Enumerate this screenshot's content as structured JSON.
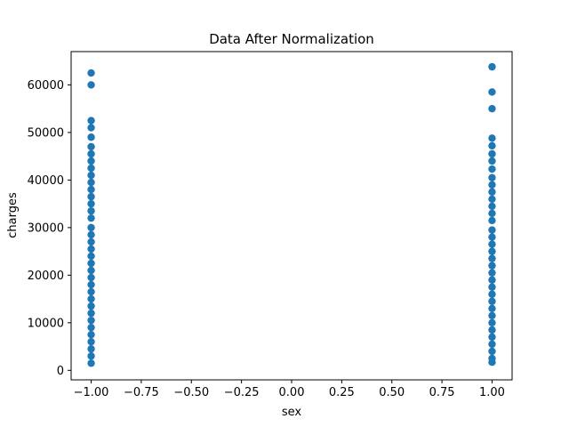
{
  "chart_data": {
    "type": "scatter",
    "title": "Data After Normalization",
    "xlabel": "sex",
    "ylabel": "charges",
    "xlim": [
      -1.1,
      1.1
    ],
    "ylim": [
      -2000,
      67000
    ],
    "x_ticks": [
      -1.0,
      -0.75,
      -0.5,
      -0.25,
      0.0,
      0.25,
      0.5,
      0.75,
      1.0
    ],
    "x_tick_labels": [
      "−1.00",
      "−0.75",
      "−0.50",
      "−0.25",
      "0.00",
      "0.25",
      "0.50",
      "0.75",
      "1.00"
    ],
    "y_ticks": [
      0,
      10000,
      20000,
      30000,
      40000,
      50000,
      60000
    ],
    "y_tick_labels": [
      "0",
      "10000",
      "20000",
      "30000",
      "40000",
      "50000",
      "60000"
    ],
    "grid": false,
    "color": "#1f77b4",
    "series": [
      {
        "points": [
          {
            "x": -1.0,
            "y": 62500
          },
          {
            "x": -1.0,
            "y": 60000
          },
          {
            "x": -1.0,
            "y": 52500
          },
          {
            "x": -1.0,
            "y": 51000
          },
          {
            "x": -1.0,
            "y": 49000
          },
          {
            "x": -1.0,
            "y": 47000
          },
          {
            "x": -1.0,
            "y": 45500
          },
          {
            "x": -1.0,
            "y": 44000
          },
          {
            "x": -1.0,
            "y": 42500
          },
          {
            "x": -1.0,
            "y": 41000
          },
          {
            "x": -1.0,
            "y": 39500
          },
          {
            "x": -1.0,
            "y": 38000
          },
          {
            "x": -1.0,
            "y": 36500
          },
          {
            "x": -1.0,
            "y": 35000
          },
          {
            "x": -1.0,
            "y": 33500
          },
          {
            "x": -1.0,
            "y": 32000
          },
          {
            "x": -1.0,
            "y": 30000
          },
          {
            "x": -1.0,
            "y": 28500
          },
          {
            "x": -1.0,
            "y": 27000
          },
          {
            "x": -1.0,
            "y": 25500
          },
          {
            "x": -1.0,
            "y": 24000
          },
          {
            "x": -1.0,
            "y": 22500
          },
          {
            "x": -1.0,
            "y": 21000
          },
          {
            "x": -1.0,
            "y": 19500
          },
          {
            "x": -1.0,
            "y": 18000
          },
          {
            "x": -1.0,
            "y": 16500
          },
          {
            "x": -1.0,
            "y": 15000
          },
          {
            "x": -1.0,
            "y": 13500
          },
          {
            "x": -1.0,
            "y": 12000
          },
          {
            "x": -1.0,
            "y": 10500
          },
          {
            "x": -1.0,
            "y": 9000
          },
          {
            "x": -1.0,
            "y": 7500
          },
          {
            "x": -1.0,
            "y": 6000
          },
          {
            "x": -1.0,
            "y": 4500
          },
          {
            "x": -1.0,
            "y": 3000
          },
          {
            "x": -1.0,
            "y": 1500
          },
          {
            "x": 1.0,
            "y": 63800
          },
          {
            "x": 1.0,
            "y": 58500
          },
          {
            "x": 1.0,
            "y": 55000
          },
          {
            "x": 1.0,
            "y": 48800
          },
          {
            "x": 1.0,
            "y": 47200
          },
          {
            "x": 1.0,
            "y": 45500
          },
          {
            "x": 1.0,
            "y": 44000
          },
          {
            "x": 1.0,
            "y": 42300
          },
          {
            "x": 1.0,
            "y": 40500
          },
          {
            "x": 1.0,
            "y": 39000
          },
          {
            "x": 1.0,
            "y": 37500
          },
          {
            "x": 1.0,
            "y": 36000
          },
          {
            "x": 1.0,
            "y": 34500
          },
          {
            "x": 1.0,
            "y": 33000
          },
          {
            "x": 1.0,
            "y": 31500
          },
          {
            "x": 1.0,
            "y": 29500
          },
          {
            "x": 1.0,
            "y": 28000
          },
          {
            "x": 1.0,
            "y": 26500
          },
          {
            "x": 1.0,
            "y": 25000
          },
          {
            "x": 1.0,
            "y": 23500
          },
          {
            "x": 1.0,
            "y": 22000
          },
          {
            "x": 1.0,
            "y": 20500
          },
          {
            "x": 1.0,
            "y": 19000
          },
          {
            "x": 1.0,
            "y": 17500
          },
          {
            "x": 1.0,
            "y": 16000
          },
          {
            "x": 1.0,
            "y": 14500
          },
          {
            "x": 1.0,
            "y": 13000
          },
          {
            "x": 1.0,
            "y": 11500
          },
          {
            "x": 1.0,
            "y": 10000
          },
          {
            "x": 1.0,
            "y": 8500
          },
          {
            "x": 1.0,
            "y": 7000
          },
          {
            "x": 1.0,
            "y": 5500
          },
          {
            "x": 1.0,
            "y": 4000
          },
          {
            "x": 1.0,
            "y": 2500
          },
          {
            "x": 1.0,
            "y": 1700
          }
        ]
      }
    ]
  }
}
